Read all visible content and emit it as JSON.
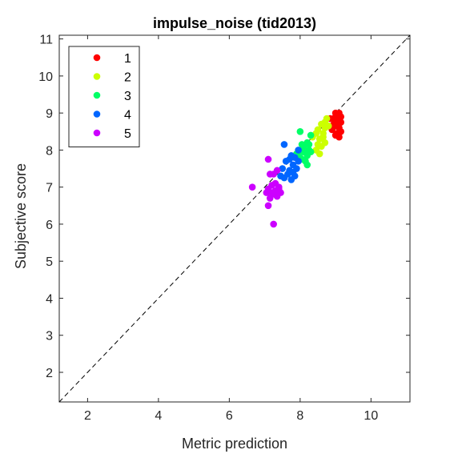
{
  "chart_data": {
    "type": "scatter",
    "title": "impulse_noise (tid2013)",
    "xlabel": "Metric prediction",
    "ylabel": "Subjective score",
    "xlim": [
      1.2,
      11.1
    ],
    "ylim": [
      1.2,
      11.1
    ],
    "xticks": [
      2,
      4,
      6,
      8,
      10
    ],
    "yticks": [
      2,
      3,
      4,
      5,
      6,
      7,
      8,
      9,
      10,
      11
    ],
    "grid": false,
    "legend_position": "top-left",
    "reference_line": "y = x (dashed)",
    "series": [
      {
        "name": "1",
        "color": "#ff0000",
        "points": [
          [
            9.0,
            9.0
          ],
          [
            9.1,
            9.0
          ],
          [
            8.95,
            8.85
          ],
          [
            9.15,
            8.9
          ],
          [
            9.05,
            8.75
          ],
          [
            9.0,
            8.65
          ],
          [
            9.1,
            8.6
          ],
          [
            8.9,
            8.55
          ],
          [
            9.15,
            8.5
          ],
          [
            9.05,
            8.45
          ],
          [
            9.0,
            8.4
          ],
          [
            9.1,
            8.35
          ],
          [
            9.15,
            8.75
          ],
          [
            8.95,
            8.7
          ],
          [
            9.0,
            8.9
          ],
          [
            8.85,
            8.85
          ],
          [
            9.1,
            8.8
          ],
          [
            8.9,
            8.6
          ]
        ]
      },
      {
        "name": "2",
        "color": "#ccff00",
        "points": [
          [
            8.75,
            8.85
          ],
          [
            8.6,
            8.7
          ],
          [
            8.5,
            8.55
          ],
          [
            8.65,
            8.45
          ],
          [
            8.7,
            8.6
          ],
          [
            8.55,
            8.3
          ],
          [
            8.7,
            8.2
          ],
          [
            8.6,
            8.1
          ],
          [
            8.45,
            8.0
          ],
          [
            8.55,
            7.9
          ],
          [
            8.65,
            8.35
          ],
          [
            8.45,
            8.45
          ],
          [
            8.8,
            8.65
          ],
          [
            8.5,
            8.15
          ],
          [
            8.35,
            8.35
          ],
          [
            8.7,
            8.75
          ]
        ]
      },
      {
        "name": "3",
        "color": "#00ff66",
        "points": [
          [
            8.0,
            8.5
          ],
          [
            8.3,
            8.4
          ],
          [
            8.2,
            8.2
          ],
          [
            8.05,
            8.15
          ],
          [
            8.25,
            8.0
          ],
          [
            8.1,
            7.95
          ],
          [
            7.95,
            7.95
          ],
          [
            8.2,
            7.85
          ],
          [
            8.0,
            7.8
          ],
          [
            8.15,
            7.7
          ],
          [
            8.3,
            7.95
          ],
          [
            8.1,
            8.1
          ],
          [
            7.9,
            7.9
          ],
          [
            8.25,
            8.15
          ],
          [
            8.05,
            7.75
          ],
          [
            8.2,
            7.6
          ]
        ]
      },
      {
        "name": "4",
        "color": "#0066ff",
        "points": [
          [
            7.55,
            8.15
          ],
          [
            7.95,
            8.0
          ],
          [
            7.85,
            7.8
          ],
          [
            7.75,
            7.85
          ],
          [
            7.6,
            7.7
          ],
          [
            7.8,
            7.6
          ],
          [
            7.9,
            7.5
          ],
          [
            7.7,
            7.45
          ],
          [
            7.5,
            7.5
          ],
          [
            7.65,
            7.35
          ],
          [
            7.85,
            7.3
          ],
          [
            7.75,
            7.2
          ],
          [
            7.55,
            7.25
          ],
          [
            7.95,
            7.7
          ],
          [
            7.7,
            7.75
          ],
          [
            7.45,
            7.3
          ],
          [
            7.8,
            7.4
          ]
        ]
      },
      {
        "name": "5",
        "color": "#cc00ff",
        "points": [
          [
            7.1,
            7.75
          ],
          [
            7.35,
            7.45
          ],
          [
            7.25,
            7.35
          ],
          [
            7.15,
            7.35
          ],
          [
            7.3,
            7.1
          ],
          [
            7.2,
            7.05
          ],
          [
            7.4,
            7.0
          ],
          [
            7.1,
            6.95
          ],
          [
            7.3,
            6.9
          ],
          [
            7.2,
            6.85
          ],
          [
            7.45,
            6.85
          ],
          [
            7.35,
            6.75
          ],
          [
            7.15,
            6.7
          ],
          [
            6.65,
            7.0
          ],
          [
            7.1,
            6.5
          ],
          [
            7.25,
            6.0
          ],
          [
            7.4,
            6.95
          ],
          [
            7.05,
            6.85
          ],
          [
            7.3,
            6.8
          ]
        ]
      }
    ]
  }
}
